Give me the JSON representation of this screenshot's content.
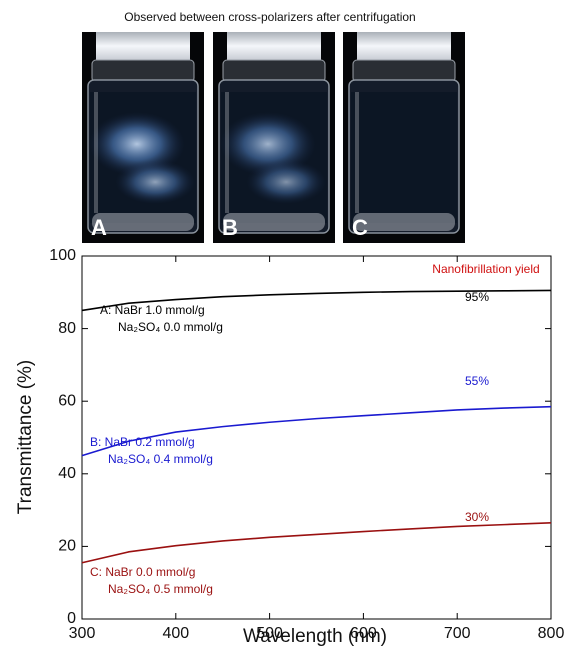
{
  "photo_caption": "Observed between cross-polarizers after centrifugation",
  "photo_labels": [
    "A",
    "B",
    "C"
  ],
  "chart_data": {
    "type": "line",
    "annotation": "Nanofibrillation yield",
    "xlabel": "Wavelength (nm)",
    "ylabel": "Transmittance (%)",
    "x": [
      300,
      350,
      400,
      450,
      500,
      550,
      600,
      650,
      700,
      750,
      800
    ],
    "xlim": [
      300,
      800
    ],
    "xticks": [
      300,
      400,
      500,
      600,
      700,
      800
    ],
    "ylim": [
      0,
      100
    ],
    "yticks": [
      0,
      20,
      40,
      60,
      80,
      100
    ],
    "series": [
      {
        "name": "A: NaBr 1.0 mmol/g",
        "name_line2": "Na₂SO₄ 0.0 mmol/g",
        "yield_label": "95%",
        "color": "#000000",
        "values": [
          85,
          87,
          88,
          88.8,
          89.3,
          89.7,
          90,
          90.2,
          90.3,
          90.4,
          90.5
        ]
      },
      {
        "name": "B: NaBr 0.2 mmol/g",
        "name_line2": "Na₂SO₄ 0.4 mmol/g",
        "yield_label": "55%",
        "color": "#1a1ad0",
        "values": [
          45,
          49,
          51.5,
          53,
          54.2,
          55.2,
          56,
          56.8,
          57.6,
          58.1,
          58.5
        ]
      },
      {
        "name": "C: NaBr 0.0 mmol/g",
        "name_line2": "Na₂SO₄ 0.5 mmol/g",
        "yield_label": "30%",
        "color": "#9a1010",
        "values": [
          15.5,
          18.5,
          20.2,
          21.5,
          22.5,
          23.3,
          24.1,
          24.8,
          25.5,
          26,
          26.5
        ]
      }
    ]
  }
}
